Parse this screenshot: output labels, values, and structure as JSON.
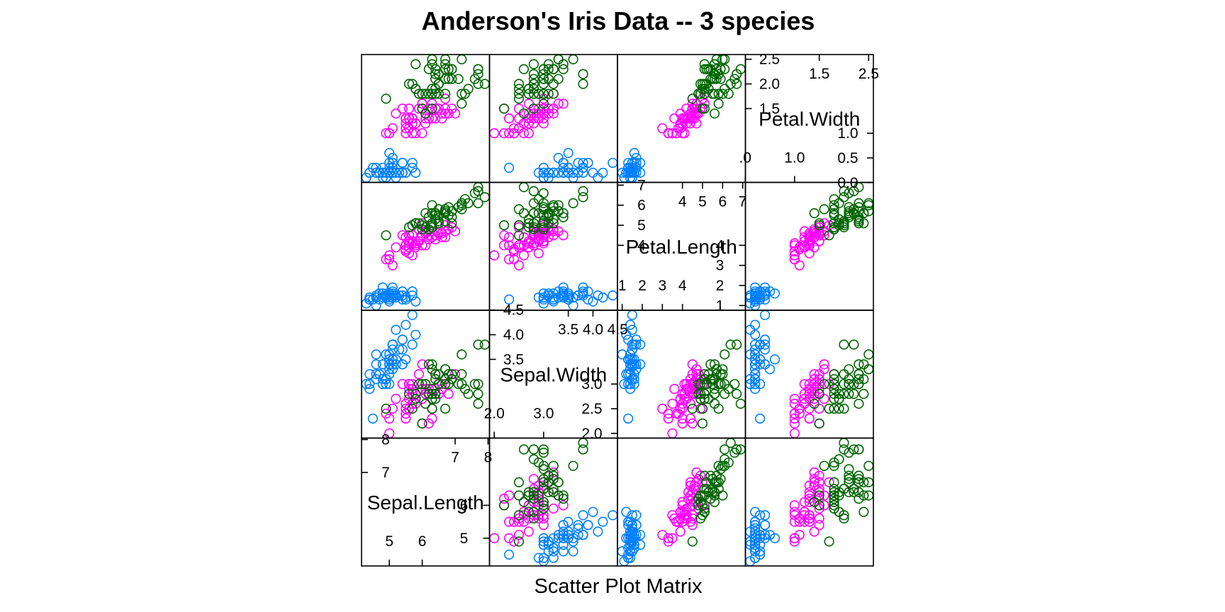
{
  "chart_data": {
    "type": "scatter",
    "title": "Anderson's Iris Data -- 3 species",
    "xlabel": "Scatter Plot Matrix",
    "grid": false,
    "colors": [
      "#0080ff",
      "#ff00ff",
      "#006400"
    ],
    "variables": [
      {
        "name": "Sepal.Length",
        "range": [
          4.3,
          7.9
        ],
        "ticks_low": [
          "5",
          "6"
        ],
        "ticks_high": [
          "7",
          "8"
        ],
        "tick_values_low": [
          5,
          6
        ],
        "tick_values_high": [
          7,
          8
        ]
      },
      {
        "name": "Sepal.Width",
        "range": [
          2.0,
          4.4
        ],
        "ticks_low": [
          "2.0",
          "3.0"
        ],
        "ticks_high": [
          "3.5",
          "4.0",
          "4.5"
        ],
        "tick_values_low": [
          2.0,
          3.0
        ],
        "tick_values_high": [
          3.5,
          4.0,
          4.5
        ],
        "right_ticks": [
          "2.0",
          "2.5",
          "3.0"
        ],
        "right_tick_values": [
          2.0,
          2.5,
          3.0
        ],
        "top_ticks": [
          "3.5",
          "4."
        ],
        "top_tick_values": [
          3.5,
          4.0
        ]
      },
      {
        "name": "Petal.Length",
        "range": [
          1.0,
          6.9
        ],
        "ticks_low": [
          "1",
          "2",
          "3",
          "4"
        ],
        "ticks_high": [
          "4",
          "5",
          "6",
          "7"
        ],
        "tick_values_low": [
          1,
          2,
          3,
          4
        ],
        "tick_values_high": [
          4,
          5,
          6,
          7
        ],
        "right_ticks": [
          "1",
          "2",
          "3",
          "4"
        ],
        "right_tick_values": [
          1,
          2,
          3,
          4
        ],
        "left_ticks": [
          "4",
          "5",
          "6",
          "7"
        ],
        "left_tick_values": [
          4,
          5,
          6,
          7
        ]
      },
      {
        "name": "Petal.Width",
        "range": [
          0.1,
          2.5
        ],
        "ticks_low": [
          ".0",
          "1.0"
        ],
        "ticks_high": [
          "1.5",
          "2.5"
        ],
        "tick_values_low": [
          0.0,
          1.0
        ],
        "tick_values_high": [
          1.5,
          2.5
        ],
        "right_ticks": [
          "0.0",
          "0.5",
          "1.0"
        ],
        "right_tick_values": [
          0.0,
          0.5,
          1.0
        ],
        "left_ticks": [
          "1.5",
          "2.0",
          "2.5"
        ],
        "left_tick_values": [
          1.5,
          2.0,
          2.5
        ]
      }
    ],
    "series": [
      {
        "values": [
          [
            5.1,
            3.5,
            1.4,
            0.2
          ],
          [
            4.9,
            3.0,
            1.4,
            0.2
          ],
          [
            4.7,
            3.2,
            1.3,
            0.2
          ],
          [
            4.6,
            3.1,
            1.5,
            0.2
          ],
          [
            5.0,
            3.6,
            1.4,
            0.2
          ],
          [
            5.4,
            3.9,
            1.7,
            0.4
          ],
          [
            4.6,
            3.4,
            1.4,
            0.3
          ],
          [
            5.0,
            3.4,
            1.5,
            0.2
          ],
          [
            4.4,
            2.9,
            1.4,
            0.2
          ],
          [
            4.9,
            3.1,
            1.5,
            0.1
          ],
          [
            5.4,
            3.7,
            1.5,
            0.2
          ],
          [
            4.8,
            3.4,
            1.6,
            0.2
          ],
          [
            4.8,
            3.0,
            1.4,
            0.1
          ],
          [
            4.3,
            3.0,
            1.1,
            0.1
          ],
          [
            5.8,
            4.0,
            1.2,
            0.2
          ],
          [
            5.7,
            4.4,
            1.5,
            0.4
          ],
          [
            5.4,
            3.9,
            1.3,
            0.4
          ],
          [
            5.1,
            3.5,
            1.4,
            0.3
          ],
          [
            5.7,
            3.8,
            1.7,
            0.3
          ],
          [
            5.1,
            3.8,
            1.5,
            0.3
          ],
          [
            5.4,
            3.4,
            1.7,
            0.2
          ],
          [
            5.1,
            3.7,
            1.5,
            0.4
          ],
          [
            4.6,
            3.6,
            1.0,
            0.2
          ],
          [
            5.1,
            3.3,
            1.7,
            0.5
          ],
          [
            4.8,
            3.4,
            1.9,
            0.2
          ],
          [
            5.0,
            3.0,
            1.6,
            0.2
          ],
          [
            5.0,
            3.4,
            1.6,
            0.4
          ],
          [
            5.2,
            3.5,
            1.5,
            0.2
          ],
          [
            5.2,
            3.4,
            1.4,
            0.2
          ],
          [
            4.7,
            3.2,
            1.6,
            0.2
          ],
          [
            4.8,
            3.1,
            1.6,
            0.2
          ],
          [
            5.4,
            3.4,
            1.5,
            0.4
          ],
          [
            5.2,
            4.1,
            1.5,
            0.1
          ],
          [
            5.5,
            4.2,
            1.4,
            0.2
          ],
          [
            4.9,
            3.1,
            1.5,
            0.2
          ],
          [
            5.0,
            3.2,
            1.2,
            0.2
          ],
          [
            5.5,
            3.5,
            1.3,
            0.2
          ],
          [
            4.9,
            3.6,
            1.4,
            0.1
          ],
          [
            4.4,
            3.0,
            1.3,
            0.2
          ],
          [
            5.1,
            3.4,
            1.5,
            0.2
          ],
          [
            5.0,
            3.5,
            1.3,
            0.3
          ],
          [
            4.5,
            2.3,
            1.3,
            0.3
          ],
          [
            4.4,
            3.2,
            1.3,
            0.2
          ],
          [
            5.0,
            3.5,
            1.6,
            0.6
          ],
          [
            5.1,
            3.8,
            1.9,
            0.4
          ],
          [
            4.8,
            3.0,
            1.4,
            0.3
          ],
          [
            5.1,
            3.8,
            1.6,
            0.2
          ],
          [
            4.6,
            3.2,
            1.4,
            0.2
          ],
          [
            5.3,
            3.7,
            1.5,
            0.2
          ],
          [
            5.0,
            3.3,
            1.4,
            0.2
          ]
        ]
      },
      {
        "values": [
          [
            7.0,
            3.2,
            4.7,
            1.4
          ],
          [
            6.4,
            3.2,
            4.5,
            1.5
          ],
          [
            6.9,
            3.1,
            4.9,
            1.5
          ],
          [
            5.5,
            2.3,
            4.0,
            1.3
          ],
          [
            6.5,
            2.8,
            4.6,
            1.5
          ],
          [
            5.7,
            2.8,
            4.5,
            1.3
          ],
          [
            6.3,
            3.3,
            4.7,
            1.6
          ],
          [
            4.9,
            2.4,
            3.3,
            1.0
          ],
          [
            6.6,
            2.9,
            4.6,
            1.3
          ],
          [
            5.2,
            2.7,
            3.9,
            1.4
          ],
          [
            5.0,
            2.0,
            3.5,
            1.0
          ],
          [
            5.9,
            3.0,
            4.2,
            1.5
          ],
          [
            6.0,
            2.2,
            4.0,
            1.0
          ],
          [
            6.1,
            2.9,
            4.7,
            1.4
          ],
          [
            5.6,
            2.9,
            3.6,
            1.3
          ],
          [
            6.7,
            3.1,
            4.4,
            1.4
          ],
          [
            5.6,
            3.0,
            4.5,
            1.5
          ],
          [
            5.8,
            2.7,
            4.1,
            1.0
          ],
          [
            6.2,
            2.2,
            4.5,
            1.5
          ],
          [
            5.6,
            2.5,
            3.9,
            1.1
          ],
          [
            5.9,
            3.2,
            4.8,
            1.8
          ],
          [
            6.1,
            2.8,
            4.0,
            1.3
          ],
          [
            6.3,
            2.5,
            4.9,
            1.5
          ],
          [
            6.1,
            2.8,
            4.7,
            1.2
          ],
          [
            6.4,
            2.9,
            4.3,
            1.3
          ],
          [
            6.6,
            3.0,
            4.4,
            1.4
          ],
          [
            6.8,
            2.8,
            4.8,
            1.4
          ],
          [
            6.7,
            3.0,
            5.0,
            1.7
          ],
          [
            6.0,
            2.9,
            4.5,
            1.5
          ],
          [
            5.7,
            2.6,
            3.5,
            1.0
          ],
          [
            5.5,
            2.4,
            3.8,
            1.1
          ],
          [
            5.5,
            2.4,
            3.7,
            1.0
          ],
          [
            5.8,
            2.7,
            3.9,
            1.2
          ],
          [
            6.0,
            2.7,
            5.1,
            1.6
          ],
          [
            5.4,
            3.0,
            4.5,
            1.5
          ],
          [
            6.0,
            3.4,
            4.5,
            1.6
          ],
          [
            6.7,
            3.1,
            4.7,
            1.5
          ],
          [
            6.3,
            2.3,
            4.4,
            1.3
          ],
          [
            5.6,
            3.0,
            4.1,
            1.3
          ],
          [
            5.5,
            2.5,
            4.0,
            1.3
          ],
          [
            5.5,
            2.6,
            4.4,
            1.2
          ],
          [
            6.1,
            3.0,
            4.6,
            1.4
          ],
          [
            5.8,
            2.6,
            4.0,
            1.2
          ],
          [
            5.0,
            2.3,
            3.3,
            1.0
          ],
          [
            5.6,
            2.7,
            4.2,
            1.3
          ],
          [
            5.7,
            3.0,
            4.2,
            1.2
          ],
          [
            5.7,
            2.9,
            4.2,
            1.3
          ],
          [
            6.2,
            2.9,
            4.3,
            1.3
          ],
          [
            5.1,
            2.5,
            3.0,
            1.1
          ],
          [
            5.7,
            2.8,
            4.1,
            1.3
          ]
        ]
      },
      {
        "values": [
          [
            6.3,
            3.3,
            6.0,
            2.5
          ],
          [
            5.8,
            2.7,
            5.1,
            1.9
          ],
          [
            7.1,
            3.0,
            5.9,
            2.1
          ],
          [
            6.3,
            2.9,
            5.6,
            1.8
          ],
          [
            6.5,
            3.0,
            5.8,
            2.2
          ],
          [
            7.6,
            3.0,
            6.6,
            2.1
          ],
          [
            4.9,
            2.5,
            4.5,
            1.7
          ],
          [
            7.3,
            2.9,
            6.3,
            1.8
          ],
          [
            6.7,
            2.5,
            5.8,
            1.8
          ],
          [
            7.2,
            3.6,
            6.1,
            2.5
          ],
          [
            6.5,
            3.2,
            5.1,
            2.0
          ],
          [
            6.4,
            2.7,
            5.3,
            1.9
          ],
          [
            6.8,
            3.0,
            5.5,
            2.1
          ],
          [
            5.7,
            2.5,
            5.0,
            2.0
          ],
          [
            5.8,
            2.8,
            5.1,
            2.4
          ],
          [
            6.4,
            3.2,
            5.3,
            2.3
          ],
          [
            6.5,
            3.0,
            5.5,
            1.8
          ],
          [
            7.7,
            3.8,
            6.7,
            2.2
          ],
          [
            7.7,
            2.6,
            6.9,
            2.3
          ],
          [
            6.0,
            2.2,
            5.0,
            1.5
          ],
          [
            6.9,
            3.2,
            5.7,
            2.3
          ],
          [
            5.6,
            2.8,
            4.9,
            2.0
          ],
          [
            7.7,
            2.8,
            6.7,
            2.0
          ],
          [
            6.3,
            2.7,
            4.9,
            1.8
          ],
          [
            6.7,
            3.3,
            5.7,
            2.1
          ],
          [
            7.2,
            3.2,
            6.0,
            1.8
          ],
          [
            6.2,
            2.8,
            4.8,
            1.8
          ],
          [
            6.1,
            3.0,
            4.9,
            1.8
          ],
          [
            6.4,
            2.8,
            5.6,
            2.1
          ],
          [
            7.2,
            3.0,
            5.8,
            1.6
          ],
          [
            7.4,
            2.8,
            6.1,
            1.9
          ],
          [
            7.9,
            3.8,
            6.4,
            2.0
          ],
          [
            6.4,
            2.8,
            5.6,
            2.2
          ],
          [
            6.3,
            2.8,
            5.1,
            1.5
          ],
          [
            6.1,
            2.6,
            5.6,
            1.4
          ],
          [
            7.7,
            3.0,
            6.1,
            2.3
          ],
          [
            6.3,
            3.4,
            5.6,
            2.4
          ],
          [
            6.4,
            3.1,
            5.5,
            1.8
          ],
          [
            6.0,
            3.0,
            4.8,
            1.8
          ],
          [
            6.9,
            3.1,
            5.4,
            2.1
          ],
          [
            6.7,
            3.1,
            5.6,
            2.4
          ],
          [
            6.9,
            3.1,
            5.1,
            2.3
          ],
          [
            5.8,
            2.7,
            5.1,
            1.9
          ],
          [
            6.8,
            3.2,
            5.9,
            2.3
          ],
          [
            6.7,
            3.3,
            5.7,
            2.5
          ],
          [
            6.7,
            3.0,
            5.2,
            2.3
          ],
          [
            6.3,
            2.5,
            5.0,
            1.9
          ],
          [
            6.5,
            3.0,
            5.2,
            2.0
          ],
          [
            6.2,
            3.4,
            5.4,
            2.3
          ],
          [
            5.9,
            3.0,
            5.1,
            1.8
          ]
        ]
      }
    ]
  }
}
